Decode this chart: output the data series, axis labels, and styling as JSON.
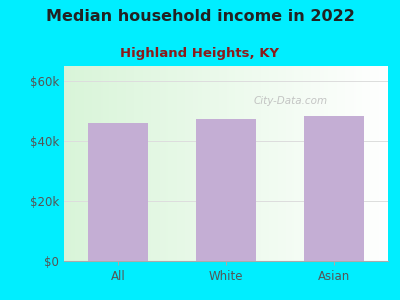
{
  "title": "Median household income in 2022",
  "subtitle": "Highland Heights, KY",
  "categories": [
    "All",
    "White",
    "Asian"
  ],
  "values": [
    46000,
    47500,
    48500
  ],
  "bar_color": "#c4aed4",
  "background_outer": "#00eeff",
  "background_inner": "#edf8ed",
  "yticks": [
    0,
    20000,
    40000,
    60000
  ],
  "ytick_labels": [
    "$0",
    "$20k",
    "$40k",
    "$60k"
  ],
  "ylim": [
    0,
    65000
  ],
  "xlim": [
    -0.5,
    2.5
  ],
  "title_fontsize": 11.5,
  "subtitle_fontsize": 9.5,
  "tick_fontsize": 8.5,
  "title_color": "#222222",
  "subtitle_color": "#8B1A1A",
  "tick_color": "#555555",
  "watermark_text": "City-Data.com",
  "watermark_color": "#bbbbbb",
  "bar_width": 0.55,
  "grid_color": "#dddddd",
  "spine_color": "#aaaaaa"
}
